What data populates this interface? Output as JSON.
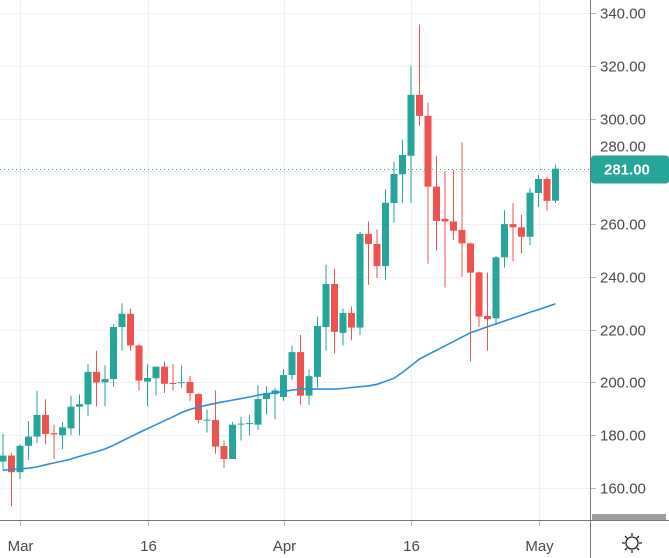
{
  "chart_data": {
    "type": "candlestick",
    "title": "",
    "colors": {
      "up": "#26a69a",
      "down": "#ef5350",
      "ma": "#2e8ed6",
      "grid": "#eef0f3",
      "axis": "#b2b5be",
      "text": "#4a4a4a"
    },
    "ylim": [
      142,
      345
    ],
    "y_ticks": [
      "340.00",
      "320.00",
      "300.00",
      "280.00",
      "260.00",
      "240.00",
      "220.00",
      "200.00",
      "180.00",
      "160.00"
    ],
    "y_tick_values": [
      340,
      320,
      300,
      280,
      260,
      240,
      220,
      200,
      180,
      160
    ],
    "x_ticks": [
      {
        "label": "Mar",
        "index": 2
      },
      {
        "label": "16",
        "index": 17
      },
      {
        "label": "Apr",
        "index": 33
      },
      {
        "label": "16",
        "index": 48
      },
      {
        "label": "May",
        "index": 63
      }
    ],
    "last_price": {
      "label": "281.00",
      "value": 281
    },
    "gear_icon": "settings-icon",
    "candles": [
      [
        170,
        180.5,
        167,
        172.3
      ],
      [
        172.3,
        173.3,
        153,
        166
      ],
      [
        166,
        176.5,
        163.4,
        176
      ],
      [
        176,
        185.4,
        170.6,
        179.5
      ],
      [
        179.5,
        196.8,
        177,
        187.7
      ],
      [
        187.7,
        193.6,
        176.7,
        180.5
      ],
      [
        180.8,
        184,
        171,
        180.3
      ],
      [
        180,
        185,
        174.8,
        183
      ],
      [
        182.6,
        195,
        180,
        190.8
      ],
      [
        190.8,
        195.5,
        180,
        191.8
      ],
      [
        191.7,
        207,
        187.4,
        204
      ],
      [
        204,
        212,
        191,
        200
      ],
      [
        200,
        206.5,
        191,
        201.3
      ],
      [
        201.3,
        222,
        198.4,
        221
      ],
      [
        221,
        230,
        212,
        226
      ],
      [
        226,
        228,
        212,
        214
      ],
      [
        214,
        214.5,
        197,
        200.7
      ],
      [
        200.3,
        207,
        191,
        201.7
      ],
      [
        201.6,
        206,
        195,
        206
      ],
      [
        206,
        208,
        196,
        199.5
      ],
      [
        199.8,
        207,
        197,
        199.6
      ],
      [
        199.8,
        206.5,
        198,
        200.1
      ],
      [
        200.2,
        202.5,
        193,
        196
      ],
      [
        195.6,
        196,
        184.5,
        185.8
      ],
      [
        185.7,
        189.7,
        181,
        185.9
      ],
      [
        185.8,
        197,
        173,
        175.7
      ],
      [
        175.9,
        178,
        167.6,
        171
      ],
      [
        171,
        185,
        171,
        184
      ],
      [
        184.2,
        187,
        178,
        184.4
      ],
      [
        184.4,
        187.7,
        180,
        184.6
      ],
      [
        184,
        199,
        182,
        193.7
      ],
      [
        193.7,
        198.5,
        187.8,
        196
      ],
      [
        195.6,
        198,
        186,
        197
      ],
      [
        194.5,
        205,
        193,
        202.8
      ],
      [
        202.8,
        214,
        200.9,
        211.5
      ],
      [
        211.5,
        218,
        191.5,
        195
      ],
      [
        195,
        205,
        191.5,
        202.4
      ],
      [
        202.1,
        225,
        198,
        221.4
      ],
      [
        221,
        244.6,
        212,
        237.3
      ],
      [
        237.3,
        243,
        211,
        219.2
      ],
      [
        218.8,
        228,
        214,
        226.3
      ],
      [
        226.3,
        228.8,
        216,
        220.8
      ],
      [
        220.8,
        257,
        218,
        256.3
      ],
      [
        256.3,
        261,
        237,
        252.5
      ],
      [
        252.5,
        258,
        239.6,
        244.1
      ],
      [
        244.1,
        273.2,
        239,
        268.1
      ],
      [
        268,
        283.7,
        260.5,
        279
      ],
      [
        278.9,
        292,
        268,
        286.2
      ],
      [
        285.9,
        320,
        268,
        309
      ],
      [
        309,
        335.5,
        297.2,
        301
      ],
      [
        301,
        306,
        245,
        274.2
      ],
      [
        274.2,
        285.8,
        250,
        261.2
      ],
      [
        262,
        280,
        236,
        261
      ],
      [
        261,
        280.5,
        254,
        257.5
      ],
      [
        257.8,
        291,
        240,
        252.7
      ],
      [
        252.7,
        253,
        208,
        241.6
      ],
      [
        241.7,
        242,
        221,
        225
      ],
      [
        225.2,
        241.6,
        212,
        224
      ],
      [
        224.3,
        248,
        221.7,
        247.4
      ],
      [
        247.4,
        265.3,
        243.5,
        260
      ],
      [
        260,
        268,
        246,
        258.8
      ],
      [
        258.8,
        263.5,
        249,
        255.2
      ],
      [
        255.2,
        273.8,
        252,
        271.9
      ],
      [
        271.8,
        278.7,
        266.5,
        277.1
      ],
      [
        277.1,
        278,
        265,
        268.8
      ],
      [
        268.9,
        282.5,
        268,
        281
      ]
    ],
    "ma": [
      166.7,
      167.0,
      167.2,
      167.5,
      168.0,
      168.8,
      169.5,
      170.2,
      171.0,
      172.0,
      172.9,
      173.8,
      174.8,
      176.2,
      177.8,
      179.4,
      181.0,
      182.5,
      184.0,
      185.5,
      187.0,
      188.6,
      189.8,
      190.7,
      191.4,
      192.1,
      192.7,
      193.3,
      193.9,
      194.5,
      195.2,
      195.7,
      196.1,
      196.6,
      197.1,
      197.5,
      197.5,
      197.5,
      197.5,
      197.5,
      197.7,
      198.1,
      198.4,
      198.7,
      199.3,
      200.4,
      201.6,
      203.8,
      206.3,
      208.9,
      210.6,
      212.2,
      213.9,
      215.5,
      217.2,
      218.8,
      220.0,
      221.1,
      222.2,
      223.3,
      224.4,
      225.5,
      226.6,
      227.6,
      228.7,
      229.8
    ]
  }
}
